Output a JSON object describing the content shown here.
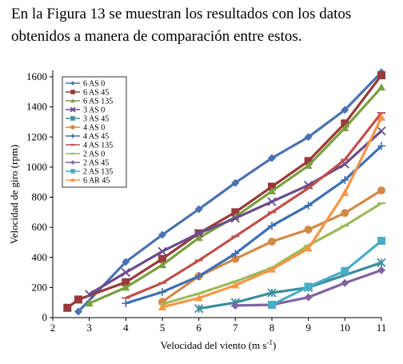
{
  "caption": "En la Figura 13 se muestran los resultados con los datos obtenidos a manera de comparación entre estos.",
  "chart_data": {
    "type": "line",
    "xlabel": "Velocidad del viento (m s-1)",
    "xlabel_main": "Velocidad del viento (m s",
    "xlabel_sup": "-1",
    "xlabel_close": ")",
    "ylabel": "Velocidad de giro (rpm)",
    "xlim": [
      2,
      11
    ],
    "ylim": [
      0,
      1600
    ],
    "xticks": [
      2,
      3,
      4,
      5,
      6,
      7,
      8,
      9,
      10,
      11
    ],
    "yticks": [
      0,
      200,
      400,
      600,
      800,
      1000,
      1200,
      1400,
      1600
    ],
    "grid": false,
    "legend_position": "top-left",
    "series": [
      {
        "name": "6 AS 0",
        "color": "#4a72b0",
        "marker": "diamond",
        "x": [
          2.7,
          4,
          5,
          6,
          7,
          8,
          9,
          10,
          11
        ],
        "y": [
          40,
          370,
          550,
          720,
          895,
          1060,
          1200,
          1380,
          1630
        ]
      },
      {
        "name": "6 AS 45",
        "color": "#9a3a3a",
        "marker": "square",
        "x": [
          2.4,
          2.7,
          4,
          5,
          6,
          7,
          8,
          9,
          10,
          11
        ],
        "y": [
          65,
          120,
          235,
          390,
          560,
          700,
          870,
          1040,
          1290,
          1610
        ]
      },
      {
        "name": "6 AS 135",
        "color": "#79a03e",
        "marker": "triangle",
        "x": [
          3,
          4,
          5,
          6,
          7,
          8,
          9,
          10,
          11
        ],
        "y": [
          95,
          200,
          350,
          530,
          670,
          840,
          1010,
          1260,
          1530
        ]
      },
      {
        "name": "3 AS 0",
        "color": "#6a4d8c",
        "marker": "x",
        "x": [
          3,
          4,
          5,
          6,
          7,
          8,
          9,
          10,
          11
        ],
        "y": [
          155,
          300,
          440,
          560,
          660,
          770,
          880,
          1020,
          1240
        ]
      },
      {
        "name": "3 AS 45",
        "color": "#3b8e9c",
        "marker": "star",
        "x": [
          6,
          7,
          8,
          9,
          11
        ],
        "y": [
          60,
          100,
          165,
          200,
          365
        ]
      },
      {
        "name": "4 AS 0",
        "color": "#d38a48",
        "marker": "circle",
        "x": [
          5,
          6,
          7,
          8,
          9,
          10,
          11
        ],
        "y": [
          105,
          275,
          390,
          505,
          585,
          695,
          845
        ]
      },
      {
        "name": "4 AS 45",
        "color": "#3e6fb3",
        "marker": "plus",
        "x": [
          4,
          5,
          6,
          7,
          8,
          9,
          10,
          11
        ],
        "y": [
          95,
          170,
          275,
          425,
          610,
          745,
          915,
          1140
        ]
      },
      {
        "name": "4 AS 135",
        "color": "#c0504d",
        "marker": "dash",
        "x": [
          4,
          5,
          6,
          7,
          8,
          9,
          10,
          11
        ],
        "y": [
          130,
          230,
          380,
          540,
          700,
          860,
          1050,
          1360
        ]
      },
      {
        "name": "2 AS 0",
        "color": "#9bbb59",
        "marker": "dash",
        "x": [
          5,
          6,
          7,
          8,
          9,
          10,
          11
        ],
        "y": [
          90,
          160,
          240,
          330,
          480,
          610,
          760
        ]
      },
      {
        "name": "2 AS 45",
        "color": "#8064a2",
        "marker": "diamond",
        "x": [
          7,
          8,
          9,
          10,
          11
        ],
        "y": [
          80,
          85,
          135,
          230,
          315
        ]
      },
      {
        "name": "2 AS 135",
        "color": "#4bacc6",
        "marker": "square",
        "x": [
          8,
          9,
          10,
          11
        ],
        "y": [
          85,
          205,
          310,
          510
        ]
      },
      {
        "name": "6 AR 45",
        "color": "#f79646",
        "marker": "triangle",
        "x": [
          5,
          6,
          7,
          8,
          9,
          10,
          11
        ],
        "y": [
          70,
          130,
          215,
          320,
          460,
          830,
          1330
        ]
      }
    ]
  }
}
